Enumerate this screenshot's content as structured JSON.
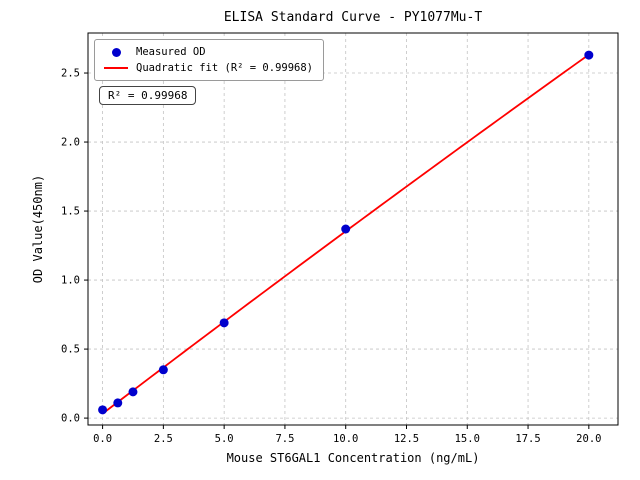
{
  "chart_data": {
    "type": "scatter",
    "title": "ELISA Standard Curve - PY1077Mu-T",
    "xlabel": "Mouse ST6GAL1 Concentration (ng/mL)",
    "ylabel": "OD Value(450nm)",
    "xlim": [
      -0.6,
      21.2
    ],
    "ylim": [
      -0.05,
      2.79
    ],
    "xticks": [
      0.0,
      2.5,
      5.0,
      7.5,
      10.0,
      12.5,
      15.0,
      17.5,
      20.0
    ],
    "yticks": [
      0.0,
      0.5,
      1.0,
      1.5,
      2.0,
      2.5
    ],
    "grid": true,
    "legend_position": "upper left",
    "annotation": "R² = 0.99968",
    "colors": {
      "scatter": "#0000cd",
      "fit_line": "#ff0000"
    },
    "series": [
      {
        "name": "Measured OD",
        "type": "scatter",
        "color": "#0000cd",
        "x": [
          0,
          0.625,
          1.25,
          2.5,
          5,
          10,
          20
        ],
        "y": [
          0.06,
          0.11,
          0.19,
          0.35,
          0.69,
          1.37,
          2.63
        ]
      },
      {
        "name": "Quadratic fit (R² = 0.99968)",
        "type": "line",
        "color": "#ff0000",
        "fit": "quadratic",
        "r_squared": 0.99968
      }
    ]
  }
}
